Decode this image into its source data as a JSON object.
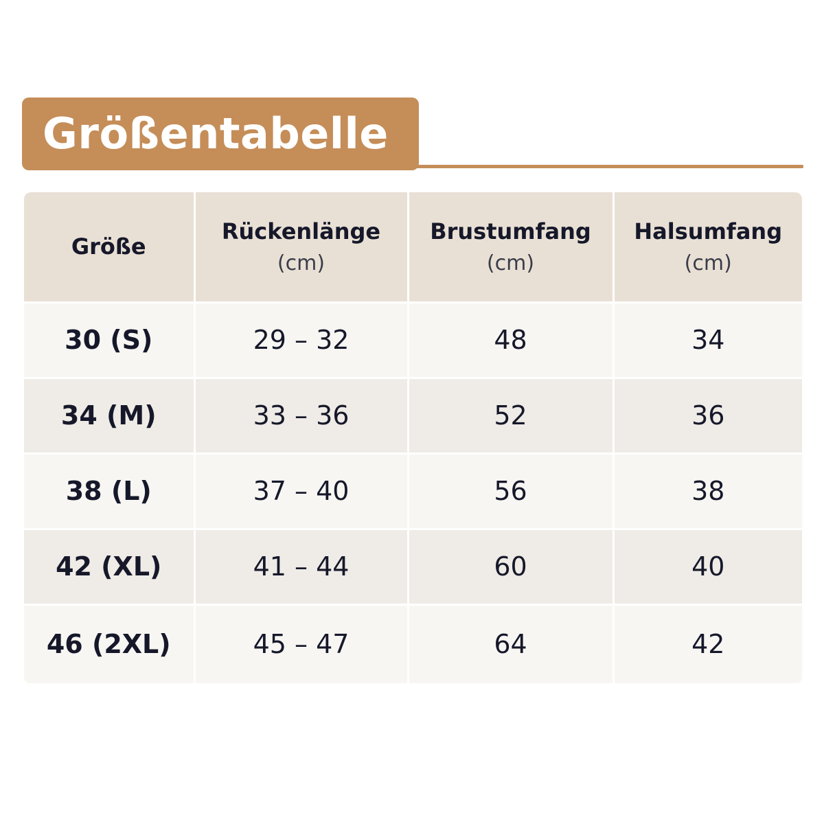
{
  "title": "Größentabelle",
  "table": {
    "columns": [
      {
        "name": "Größe"
      },
      {
        "name": "Rückenlänge",
        "unit": "(cm)"
      },
      {
        "name": "Brustumfang",
        "unit": "(cm)"
      },
      {
        "name": "Halsumfang",
        "unit": "(cm)"
      }
    ],
    "rows": [
      [
        "30 (S)",
        "29 – 32",
        "48",
        "34"
      ],
      [
        "34 (M)",
        "33 – 36",
        "52",
        "36"
      ],
      [
        "38 (L)",
        "37 – 40",
        "56",
        "38"
      ],
      [
        "42 (XL)",
        "41 – 44",
        "60",
        "40"
      ],
      [
        "46 (2XL)",
        "45 – 47",
        "64",
        "42"
      ]
    ]
  }
}
